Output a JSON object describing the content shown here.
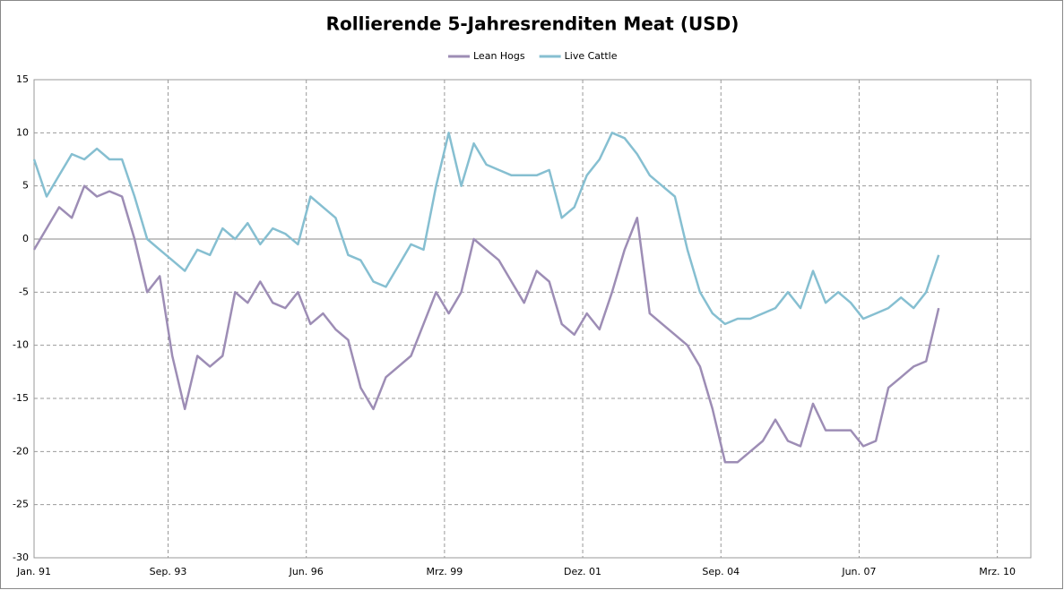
{
  "chart_data": {
    "type": "line",
    "title": "Rollierende 5-Jahresrenditen Meat (USD)",
    "x": [
      "1991-01",
      "1991-04",
      "1991-07",
      "1991-10",
      "1992-01",
      "1992-04",
      "1992-07",
      "1992-10",
      "1993-01",
      "1993-04",
      "1993-07",
      "1993-10",
      "1994-01",
      "1994-04",
      "1994-07",
      "1994-10",
      "1995-01",
      "1995-04",
      "1995-07",
      "1995-10",
      "1996-01",
      "1996-04",
      "1996-07",
      "1996-10",
      "1997-01",
      "1997-04",
      "1997-07",
      "1997-10",
      "1998-01",
      "1998-04",
      "1998-07",
      "1998-10",
      "1999-01",
      "1999-04",
      "1999-07",
      "1999-10",
      "2000-01",
      "2000-04",
      "2000-07",
      "2000-10",
      "2001-01",
      "2001-04",
      "2001-07",
      "2001-10",
      "2002-01",
      "2002-04",
      "2002-07",
      "2002-10",
      "2003-01",
      "2003-04",
      "2003-07",
      "2003-10",
      "2004-01",
      "2004-04",
      "2004-07",
      "2004-10",
      "2005-01",
      "2005-04",
      "2005-07",
      "2005-10",
      "2006-01",
      "2006-04",
      "2006-07",
      "2006-10",
      "2007-01",
      "2007-04",
      "2007-07",
      "2007-10",
      "2008-01",
      "2008-04",
      "2008-07",
      "2008-10",
      "2009-01"
    ],
    "series": [
      {
        "name": "Lean Hogs",
        "color": "#9d8db5",
        "values": [
          -1,
          1,
          3,
          2,
          5,
          4,
          4.5,
          4,
          0,
          -5,
          -3.5,
          -11,
          -16,
          -11,
          -12,
          -11,
          -5,
          -6,
          -4,
          -6,
          -6.5,
          -5,
          -8,
          -7,
          -8.5,
          -9.5,
          -14,
          -16,
          -13,
          -12,
          -11,
          -8,
          -5,
          -7,
          -5,
          0,
          -1,
          -2,
          -4,
          -6,
          -3,
          -4,
          -8,
          -9,
          -7,
          -8.5,
          -5,
          -1,
          2,
          -7,
          -8,
          -9,
          -10,
          -12,
          -16,
          -21,
          -21,
          -20,
          -19,
          -17,
          -19,
          -19.5,
          -15.5,
          -18,
          -18,
          -18,
          -19.5,
          -19,
          -14,
          -13,
          -12,
          -11.5,
          -6.5
        ]
      },
      {
        "name": "Live Cattle",
        "color": "#86bfd1",
        "values": [
          7.5,
          4,
          6,
          8,
          7.5,
          8.5,
          7.5,
          7.5,
          4,
          0,
          -1,
          -2,
          -3,
          -1,
          -1.5,
          1,
          0,
          1.5,
          -0.5,
          1,
          0.5,
          -0.5,
          4,
          3,
          2,
          -1.5,
          -2,
          -4,
          -4.5,
          -2.5,
          -0.5,
          -1,
          5,
          10,
          5,
          9,
          7,
          6.5,
          6,
          6,
          6,
          6.5,
          2,
          3,
          6,
          7.5,
          10,
          9.5,
          8,
          6,
          5,
          4,
          -1,
          -5,
          -7,
          -8,
          -7.5,
          -7.5,
          -7,
          -6.5,
          -5,
          -6.5,
          -3,
          -6,
          -5,
          -6,
          -7.5,
          -7,
          -6.5,
          -5.5,
          -6.5,
          -5,
          -1.5
        ]
      }
    ],
    "xlim": [
      "1991-01",
      "2010-11"
    ],
    "xticks": [
      {
        "value": "1991-01",
        "label": "Jan. 91"
      },
      {
        "value": "1993-09",
        "label": "Sep. 93"
      },
      {
        "value": "1996-06",
        "label": "Jun. 96"
      },
      {
        "value": "1999-03",
        "label": "Mrz. 99"
      },
      {
        "value": "2001-12",
        "label": "Dez. 01"
      },
      {
        "value": "2004-09",
        "label": "Sep. 04"
      },
      {
        "value": "2007-06",
        "label": "Jun. 07"
      },
      {
        "value": "2010-03",
        "label": "Mrz. 10"
      }
    ],
    "ylim": [
      -30,
      15
    ],
    "yticks": [
      -30,
      -25,
      -20,
      -15,
      -10,
      -5,
      0,
      5,
      10,
      15
    ],
    "grid": true,
    "legend": "top"
  }
}
